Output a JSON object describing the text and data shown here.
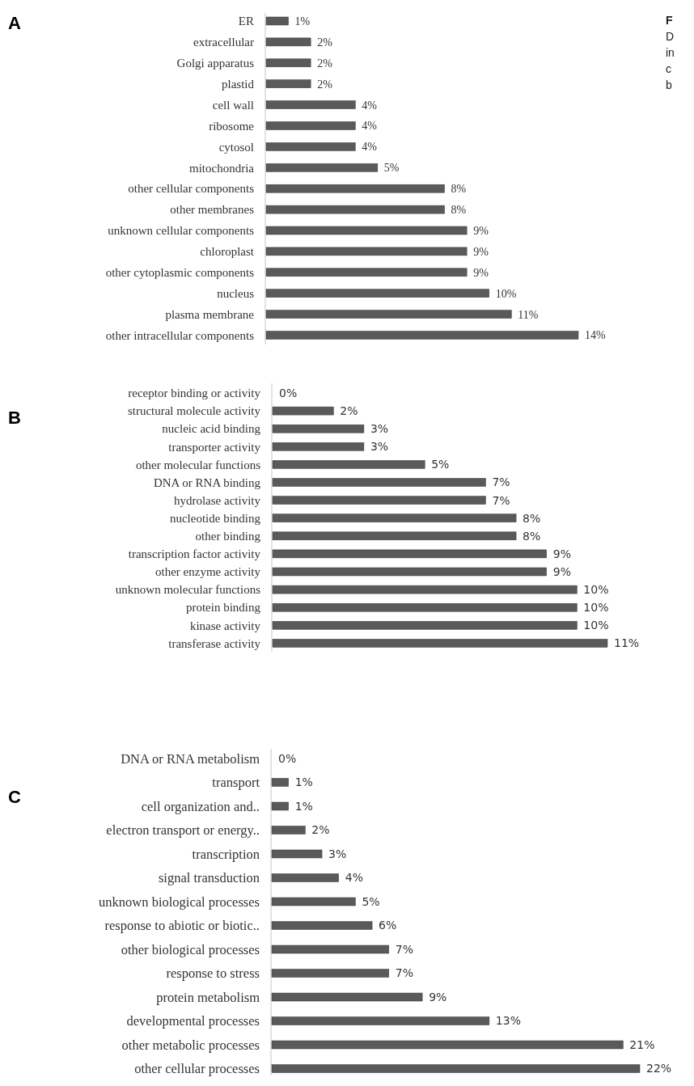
{
  "chart_data": [
    {
      "type": "bar",
      "orientation": "horizontal",
      "title": "A",
      "annotations": [
        "F",
        "D",
        "in",
        "c",
        "b"
      ],
      "categories": [
        "ER",
        "extracellular",
        "Golgi apparatus",
        "plastid",
        "cell wall",
        "ribosome",
        "cytosol",
        "mitochondria",
        "other cellular components",
        "other membranes",
        "unknown cellular components",
        "chloroplast",
        "other cytoplasmic components",
        "nucleus",
        "plasma membrane",
        "other intracellular components"
      ],
      "values": [
        1,
        2,
        2,
        2,
        4,
        4,
        4,
        5,
        8,
        8,
        9,
        9,
        9,
        10,
        11,
        14
      ],
      "value_labels": [
        "1%",
        "2%",
        "2%",
        "2%",
        "4%",
        "4%",
        "4%",
        "5%",
        "8%",
        "8%",
        "9%",
        "9%",
        "9%",
        "10%",
        "11%",
        "14%"
      ],
      "color": "#5a5a5a"
    },
    {
      "type": "bar",
      "orientation": "horizontal",
      "title": "B",
      "categories": [
        "receptor binding or activity",
        "structural molecule activity",
        "nucleic acid binding",
        "transporter activity",
        "other molecular functions",
        "DNA or RNA binding",
        "hydrolase activity",
        "nucleotide binding",
        "other binding",
        "transcription factor activity",
        "other enzyme activity",
        "unknown molecular functions",
        "protein binding",
        "kinase activity",
        "transferase activity"
      ],
      "values": [
        0,
        2,
        3,
        3,
        5,
        7,
        7,
        8,
        8,
        9,
        9,
        10,
        10,
        10,
        11
      ],
      "value_labels": [
        "0%",
        "2%",
        "3%",
        "3%",
        "5%",
        "7%",
        "7%",
        "8%",
        "8%",
        "9%",
        "9%",
        "10%",
        "10%",
        "10%",
        "11%"
      ],
      "color": "#5a5a5a"
    },
    {
      "type": "bar",
      "orientation": "horizontal",
      "title": "C",
      "categories": [
        "DNA or RNA metabolism",
        "transport",
        "cell organization and..",
        "electron transport or energy..",
        "transcription",
        "signal transduction",
        "unknown biological processes",
        "response to abiotic or biotic..",
        "other biological processes",
        "response to stress",
        "protein metabolism",
        "developmental processes",
        "other metabolic processes",
        "other cellular processes"
      ],
      "values": [
        0,
        1,
        1,
        2,
        3,
        4,
        5,
        6,
        7,
        7,
        9,
        13,
        21,
        22
      ],
      "value_labels": [
        "0%",
        "1%",
        "1%",
        "2%",
        "3%",
        "4%",
        "5%",
        "6%",
        "7%",
        "7%",
        "9%",
        "13%",
        "21%",
        "22%"
      ],
      "color": "#5a5a5a"
    }
  ]
}
